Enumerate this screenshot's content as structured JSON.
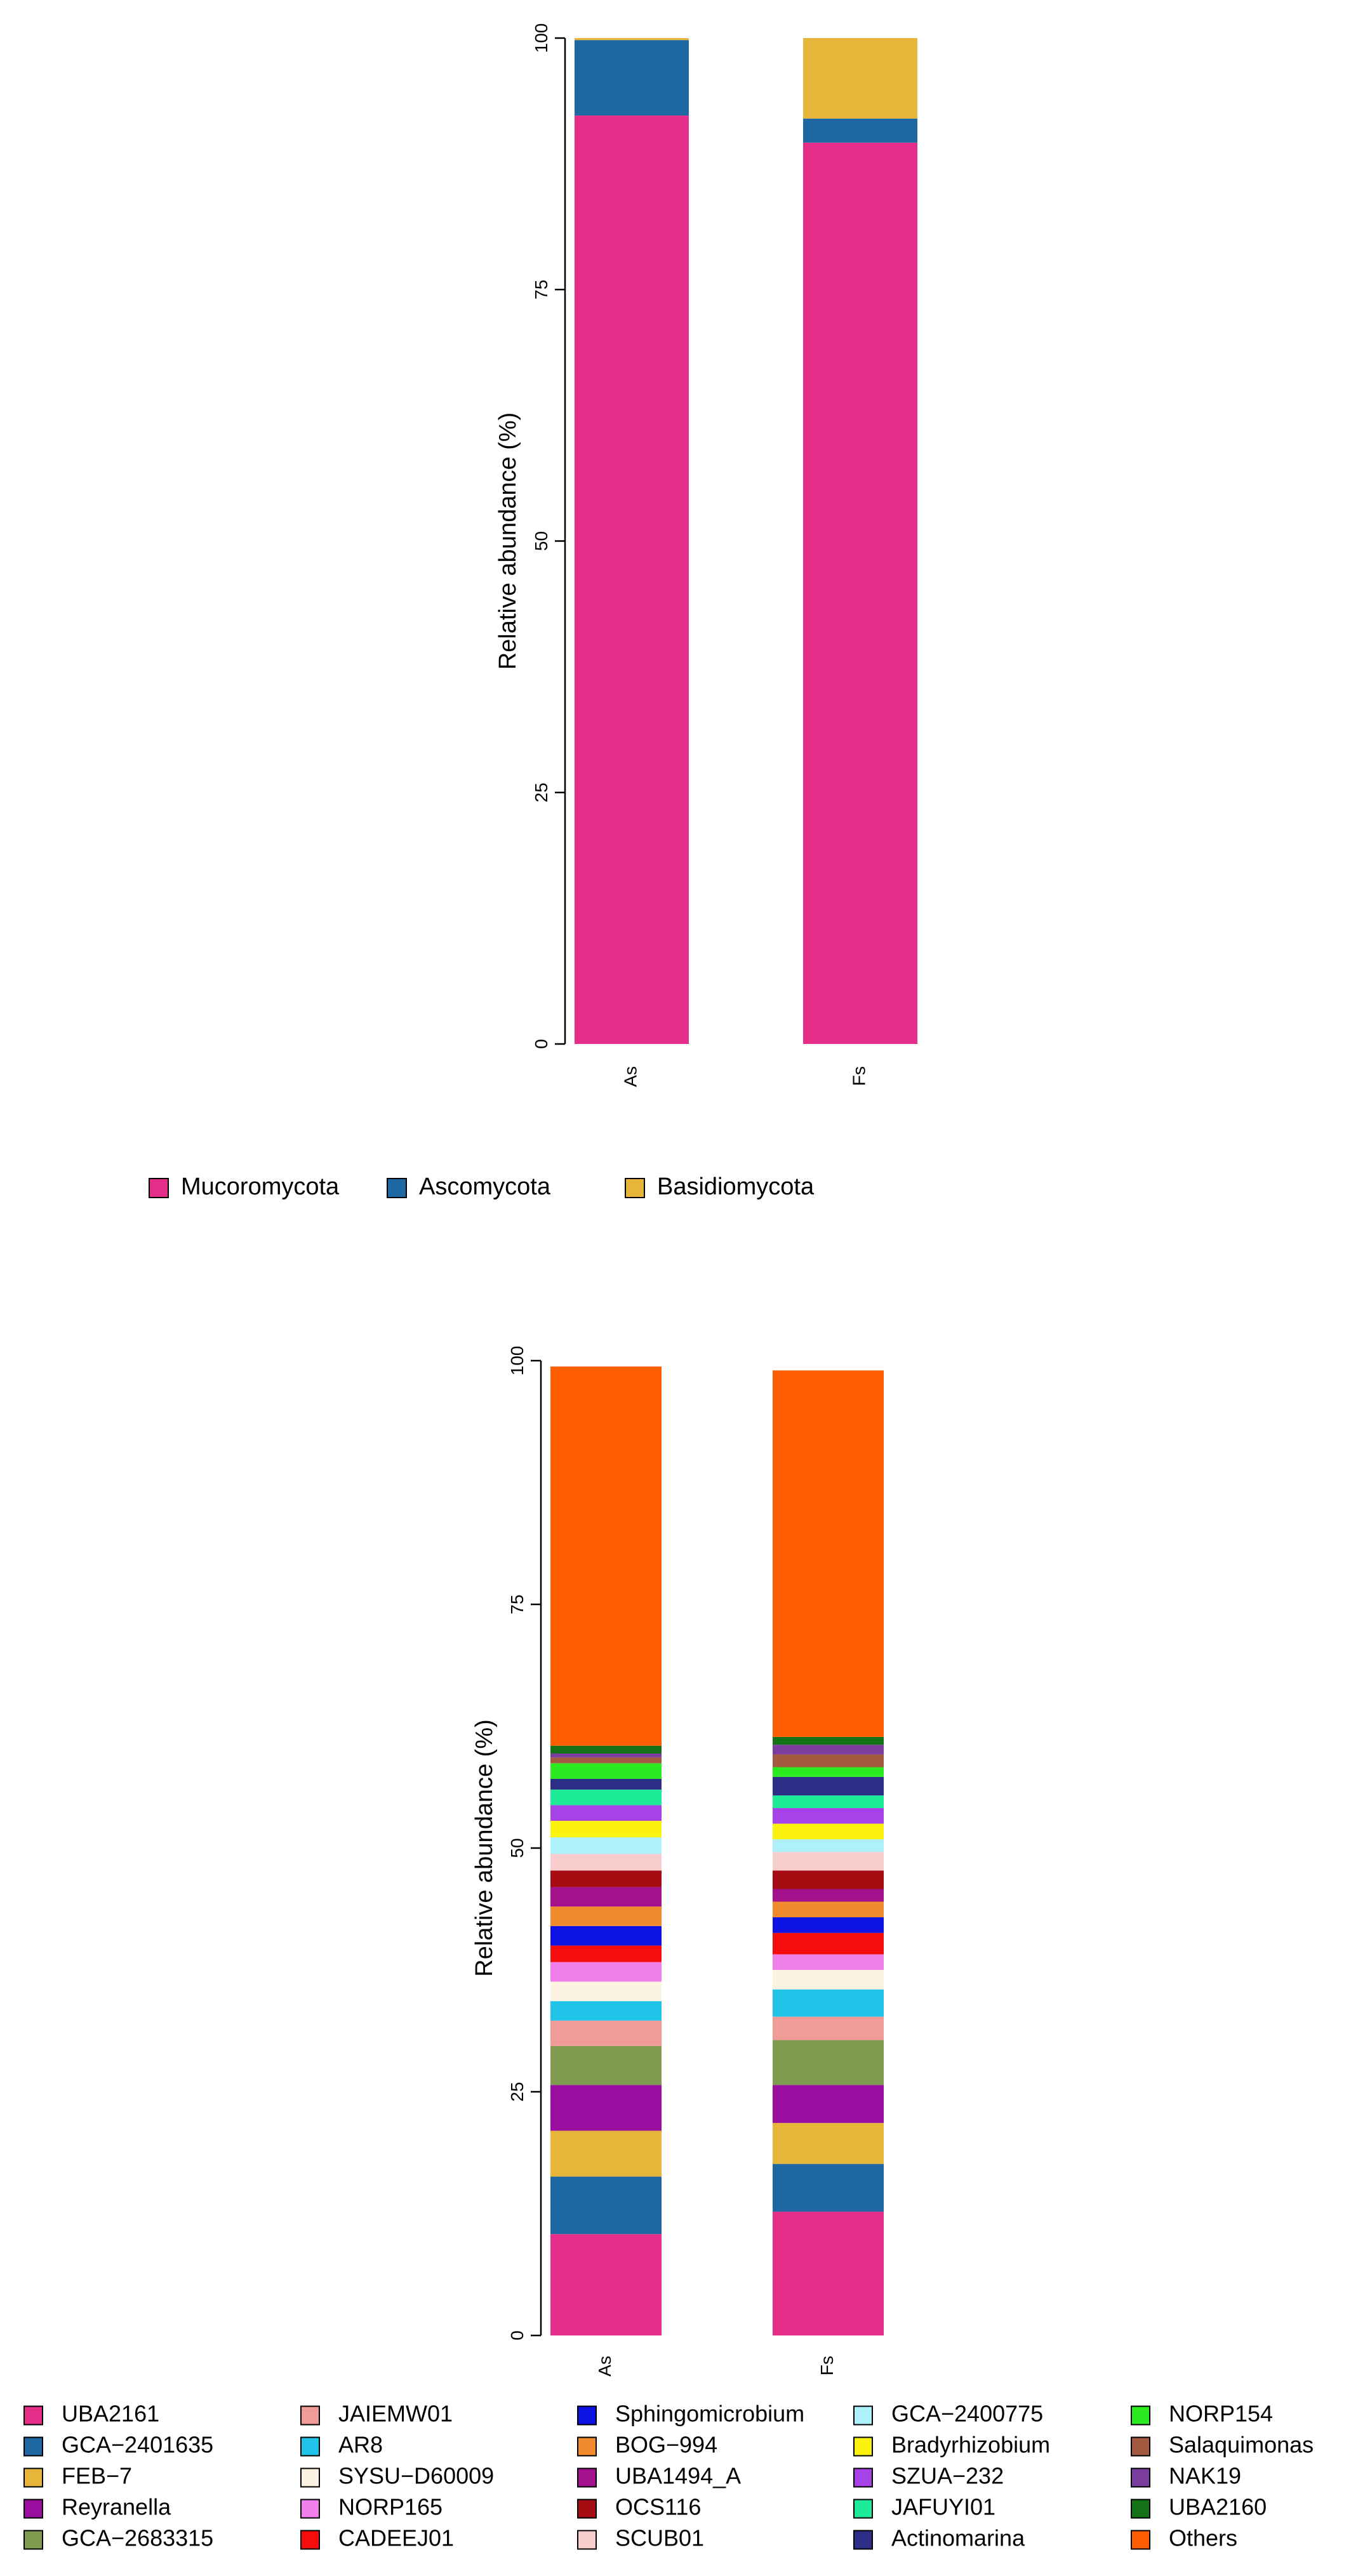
{
  "chart_data": [
    {
      "type": "bar",
      "stacked": true,
      "categories": [
        "As",
        "Fs"
      ],
      "ylabel": "Relative abundance (%)",
      "ylim": [
        0,
        100
      ],
      "yticks": [
        "0",
        "25",
        "50",
        "75",
        "100"
      ],
      "legend_placement": "bottom",
      "series": [
        {
          "name": "Mucoromycota",
          "color": "#E62D8A",
          "values": [
            92.3,
            89.6
          ]
        },
        {
          "name": "Ascomycota",
          "color": "#1F67A2",
          "values": [
            7.5,
            2.4
          ]
        },
        {
          "name": "Basidiomycota",
          "color": "#E6B53A",
          "values": [
            0.2,
            8.0
          ]
        }
      ]
    },
    {
      "type": "bar",
      "stacked": true,
      "categories": [
        "As",
        "Fs"
      ],
      "ylabel": "Relative abundance (%)",
      "ylim": [
        0,
        100
      ],
      "yticks": [
        "0",
        "25",
        "50",
        "75",
        "100"
      ],
      "legend_placement": "bottom",
      "series": [
        {
          "name": "UBA2161",
          "color": "#E62D8A",
          "values": [
            10.4,
            12.7
          ]
        },
        {
          "name": "GCA−2401635",
          "color": "#1F67A2",
          "values": [
            5.9,
            4.9
          ]
        },
        {
          "name": "FEB−7",
          "color": "#E6B53A",
          "values": [
            4.7,
            4.2
          ]
        },
        {
          "name": "Reyranella",
          "color": "#9B0D9E",
          "values": [
            4.7,
            3.9
          ]
        },
        {
          "name": "GCA−2683315",
          "color": "#7E9B4F",
          "values": [
            4.0,
            4.6
          ]
        },
        {
          "name": "JAIEMW01",
          "color": "#F19B99",
          "values": [
            2.6,
            2.4
          ]
        },
        {
          "name": "AR8",
          "color": "#1FC4E8",
          "values": [
            2.0,
            2.8
          ]
        },
        {
          "name": "SYSU−D60009",
          "color": "#FCF3E3",
          "values": [
            2.0,
            2.0
          ]
        },
        {
          "name": "NORP165",
          "color": "#F07EEB",
          "values": [
            2.0,
            1.6
          ]
        },
        {
          "name": "CADEEJ01",
          "color": "#F50C0C",
          "values": [
            1.7,
            2.2
          ]
        },
        {
          "name": "Sphingomicrobium",
          "color": "#0B12E3",
          "values": [
            2.0,
            1.6
          ]
        },
        {
          "name": "BOG−994",
          "color": "#F28A2E",
          "values": [
            2.0,
            1.6
          ]
        },
        {
          "name": "UBA1494_A",
          "color": "#A3128C",
          "values": [
            2.0,
            1.3
          ]
        },
        {
          "name": "OCS116",
          "color": "#A60C12",
          "values": [
            1.7,
            1.9
          ]
        },
        {
          "name": "SCUB01",
          "color": "#F7CDCD",
          "values": [
            1.7,
            1.9
          ]
        },
        {
          "name": "GCA−2400775",
          "color": "#AEF0FC",
          "values": [
            1.7,
            1.3
          ]
        },
        {
          "name": "Bradyrhizobium",
          "color": "#FCF20F",
          "values": [
            1.7,
            1.6
          ]
        },
        {
          "name": "SZUA−232",
          "color": "#A741E8",
          "values": [
            1.6,
            1.6
          ]
        },
        {
          "name": "JAFUYI01",
          "color": "#1EEB98",
          "values": [
            1.6,
            1.3
          ]
        },
        {
          "name": "Actinomarina",
          "color": "#2D2E86",
          "values": [
            1.1,
            1.9
          ]
        },
        {
          "name": "NORP154",
          "color": "#2BEA1F",
          "values": [
            1.6,
            1.0
          ]
        },
        {
          "name": "Salaquimonas",
          "color": "#A35A40",
          "values": [
            0.6,
            1.3
          ]
        },
        {
          "name": "NAK19",
          "color": "#7C3E9E",
          "values": [
            0.4,
            1.0
          ]
        },
        {
          "name": "UBA2160",
          "color": "#147216",
          "values": [
            0.8,
            0.8
          ]
        },
        {
          "name": "Others",
          "color": "#FF5E00",
          "values": [
            38.9,
            37.6
          ]
        }
      ]
    }
  ]
}
